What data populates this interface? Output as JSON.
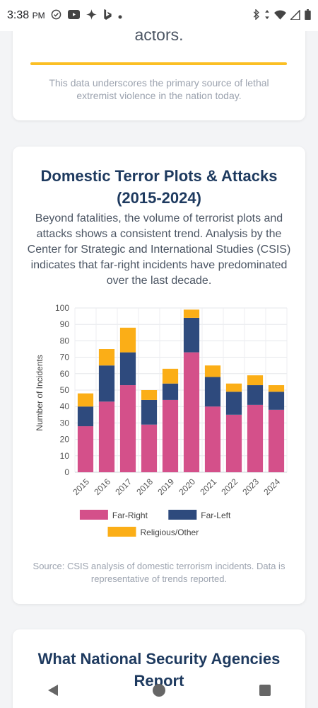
{
  "status": {
    "time": "3:38",
    "ampm": "PM",
    "left_icons": [
      "check-circle-icon",
      "youtube-icon",
      "sparkle-icon",
      "bing-icon",
      "dot-icon"
    ],
    "right_icons": [
      "bluetooth-icon",
      "data-arrows-icon",
      "wifi-icon",
      "signal-icon",
      "battery-icon"
    ]
  },
  "top_card": {
    "heading_tail": "actors.",
    "note": "This data underscores the primary source of lethal extremist violence in the nation today."
  },
  "chart_card": {
    "title": "Domestic Terror Plots & Attacks (2015-2024)",
    "description": "Beyond fatalities, the volume of terrorist plots and attacks shows a consistent trend. Analysis by the Center for Strategic and International Studies (CSIS) indicates that far-right incidents have predominated over the last decade.",
    "source": "Source: CSIS analysis of domestic terrorism incidents. Data is representative of trends reported."
  },
  "chart_data": {
    "type": "bar",
    "stacked": true,
    "categories": [
      "2015",
      "2016",
      "2017",
      "2018",
      "2019",
      "2020",
      "2021",
      "2022",
      "2023",
      "2024"
    ],
    "series": [
      {
        "name": "Far-Right",
        "color": "#d4508a",
        "values": [
          28,
          43,
          53,
          29,
          44,
          73,
          40,
          35,
          41,
          38
        ]
      },
      {
        "name": "Far-Left",
        "color": "#2e4a7d",
        "values": [
          12,
          22,
          20,
          15,
          10,
          21,
          18,
          14,
          12,
          11
        ]
      },
      {
        "name": "Religious/Other",
        "color": "#fbae17",
        "values": [
          8,
          10,
          15,
          6,
          9,
          5,
          7,
          5,
          6,
          4
        ]
      }
    ],
    "title": "",
    "xlabel": "",
    "ylabel": "Number of Incidents",
    "ylim": [
      0,
      100
    ],
    "yticks": [
      "0",
      "10",
      "20",
      "30",
      "40",
      "50",
      "60",
      "70",
      "80",
      "90",
      "100"
    ],
    "grid": true,
    "legend_position": "bottom"
  },
  "bottom_card": {
    "title": "What National Security Agencies Report"
  },
  "nav": {
    "back_icon": "back-triangle-icon",
    "home_icon": "home-circle-icon",
    "recents_icon": "recents-square-icon"
  }
}
